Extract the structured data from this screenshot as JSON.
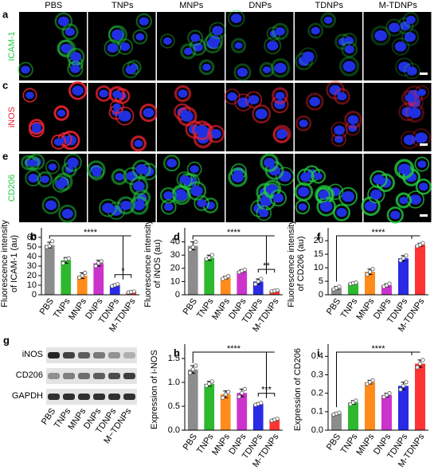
{
  "figure": {
    "micrographs": {
      "columns": [
        "PBS",
        "TNPs",
        "MNPs",
        "DNPs",
        "TDNPs",
        "M-TDNPs"
      ],
      "rows": [
        {
          "panel": "a",
          "label": "ICAM-1",
          "color": "#22cc44"
        },
        {
          "panel": "c",
          "label": "iNOS",
          "color": "#ee2233"
        },
        {
          "panel": "e",
          "label": "CD206",
          "color": "#22cc44"
        }
      ]
    },
    "blot": {
      "panel": "g",
      "bands": [
        "iNOS",
        "CD206",
        "GAPDH"
      ],
      "lanes": [
        "PBS",
        "TNPs",
        "MNPs",
        "DNPs",
        "TDNPs",
        "M−TDNPs"
      ]
    }
  },
  "chart_data": [
    {
      "type": "bar",
      "panel": "b",
      "ylabel": [
        "Fluorescence intensity",
        "of ICAM-1 (au)"
      ],
      "categories": [
        "PBS",
        "TNPs",
        "MNPs",
        "DNPs",
        "TDNPs",
        "M-TDNPs"
      ],
      "values": [
        52,
        36,
        20,
        33,
        10,
        3
      ],
      "errors": [
        3,
        3,
        3,
        3,
        1,
        0.5
      ],
      "points": [
        [
          50,
          51,
          56
        ],
        [
          33,
          37,
          38
        ],
        [
          18,
          20,
          23
        ],
        [
          30,
          33,
          35
        ],
        [
          9,
          10,
          11
        ],
        [
          2.5,
          3,
          3.4
        ]
      ],
      "colors": [
        "#8c8c8c",
        "#2eb82e",
        "#ff8c1a",
        "#cc33cc",
        "#2a2ae6",
        "#ff3333"
      ],
      "ylim": [
        0,
        65
      ],
      "yticks": [
        0,
        10,
        20,
        30,
        40,
        50,
        60
      ],
      "annotations": [
        "****",
        "*"
      ]
    },
    {
      "type": "bar",
      "panel": "d",
      "ylabel": [
        "Fluorescence intensity",
        "of iNOS (au)"
      ],
      "categories": [
        "PBS",
        "TNPs",
        "MNPs",
        "DNPs",
        "TDNPs",
        "M-TDNPs"
      ],
      "values": [
        37,
        28,
        13,
        18,
        10,
        3
      ],
      "errors": [
        3,
        2,
        1,
        1,
        2,
        0.5
      ],
      "points": [
        [
          34,
          36,
          40
        ],
        [
          27,
          28,
          30
        ],
        [
          12,
          13,
          14
        ],
        [
          17,
          18,
          19
        ],
        [
          8,
          10,
          12
        ],
        [
          2.6,
          3,
          3.4
        ]
      ],
      "colors": [
        "#8c8c8c",
        "#2eb82e",
        "#ff8c1a",
        "#cc33cc",
        "#2a2ae6",
        "#ff3333"
      ],
      "ylim": [
        0,
        47
      ],
      "yticks": [
        0,
        10,
        20,
        30,
        40
      ],
      "annotations": [
        "****",
        "**"
      ]
    },
    {
      "type": "bar",
      "panel": "f",
      "ylabel": [
        "Fluorescence intensity",
        "of CD206 (au)"
      ],
      "categories": [
        "PBS",
        "TNPs",
        "MNPs",
        "DNPs",
        "TDNPs",
        "M-TDNPs"
      ],
      "values": [
        2.5,
        4.3,
        8.5,
        3.5,
        13.5,
        18.5
      ],
      "errors": [
        0.6,
        0.3,
        1,
        0.6,
        1,
        0.6
      ],
      "points": [
        [
          2,
          2.5,
          3
        ],
        [
          4,
          4.3,
          4.5
        ],
        [
          7.5,
          8.5,
          9.5
        ],
        [
          3,
          3.5,
          4.1
        ],
        [
          12.7,
          13.5,
          14.5
        ],
        [
          18,
          18.5,
          19.1
        ]
      ],
      "colors": [
        "#8c8c8c",
        "#2eb82e",
        "#ff8c1a",
        "#cc33cc",
        "#2a2ae6",
        "#ff3333"
      ],
      "ylim": [
        0,
        23
      ],
      "yticks": [
        0,
        5,
        10,
        15,
        20
      ],
      "annotations": [
        "****"
      ]
    },
    {
      "type": "bar",
      "panel": "h",
      "ylabel": [
        "Expression of i-NOS"
      ],
      "categories": [
        "PBS",
        "TNPs",
        "MNPs",
        "DNPs",
        "TDNPs",
        "M-TDNPs"
      ],
      "values": [
        1.27,
        0.97,
        0.75,
        0.78,
        0.55,
        0.22
      ],
      "errors": [
        0.08,
        0.05,
        0.07,
        0.08,
        0.02,
        0.02
      ],
      "points": [
        [
          1.2,
          1.27,
          1.35
        ],
        [
          0.93,
          0.97,
          1.02
        ],
        [
          0.68,
          0.75,
          0.8
        ],
        [
          0.7,
          0.78,
          0.86
        ],
        [
          0.53,
          0.55,
          0.57
        ],
        [
          0.2,
          0.22,
          0.24
        ]
      ],
      "colors": [
        "#8c8c8c",
        "#2eb82e",
        "#ff8c1a",
        "#cc33cc",
        "#2a2ae6",
        "#ff3333"
      ],
      "ylim": [
        0,
        1.7
      ],
      "yticks": [
        {
          "value": 0,
          "label": "0.0"
        },
        0.5,
        {
          "value": 1,
          "label": "1.0"
        },
        1.5
      ],
      "annotations": [
        "****",
        "***"
      ]
    },
    {
      "type": "bar",
      "panel": "i",
      "ylabel": [
        "Expression of CD206"
      ],
      "categories": [
        "PBS",
        "TNPs",
        "MNPs",
        "DNPs",
        "TDNPs",
        "M-TDNPs"
      ],
      "values": [
        0.09,
        0.15,
        0.26,
        0.19,
        0.24,
        0.36
      ],
      "errors": [
        0.005,
        0.01,
        0.01,
        0.01,
        0.02,
        0.02
      ],
      "points": [
        [
          0.085,
          0.09,
          0.095
        ],
        [
          0.14,
          0.15,
          0.16
        ],
        [
          0.25,
          0.26,
          0.27
        ],
        [
          0.18,
          0.19,
          0.2
        ],
        [
          0.22,
          0.24,
          0.26
        ],
        [
          0.34,
          0.36,
          0.38
        ]
      ],
      "colors": [
        "#8c8c8c",
        "#2eb82e",
        "#ff8c1a",
        "#cc33cc",
        "#2a2ae6",
        "#ff3333"
      ],
      "ylim": [
        0,
        0.44
      ],
      "yticks": [
        {
          "value": 0,
          "label": "0.0"
        },
        0.1,
        0.2,
        0.3,
        0.4
      ],
      "annotations": [
        "****"
      ]
    }
  ]
}
